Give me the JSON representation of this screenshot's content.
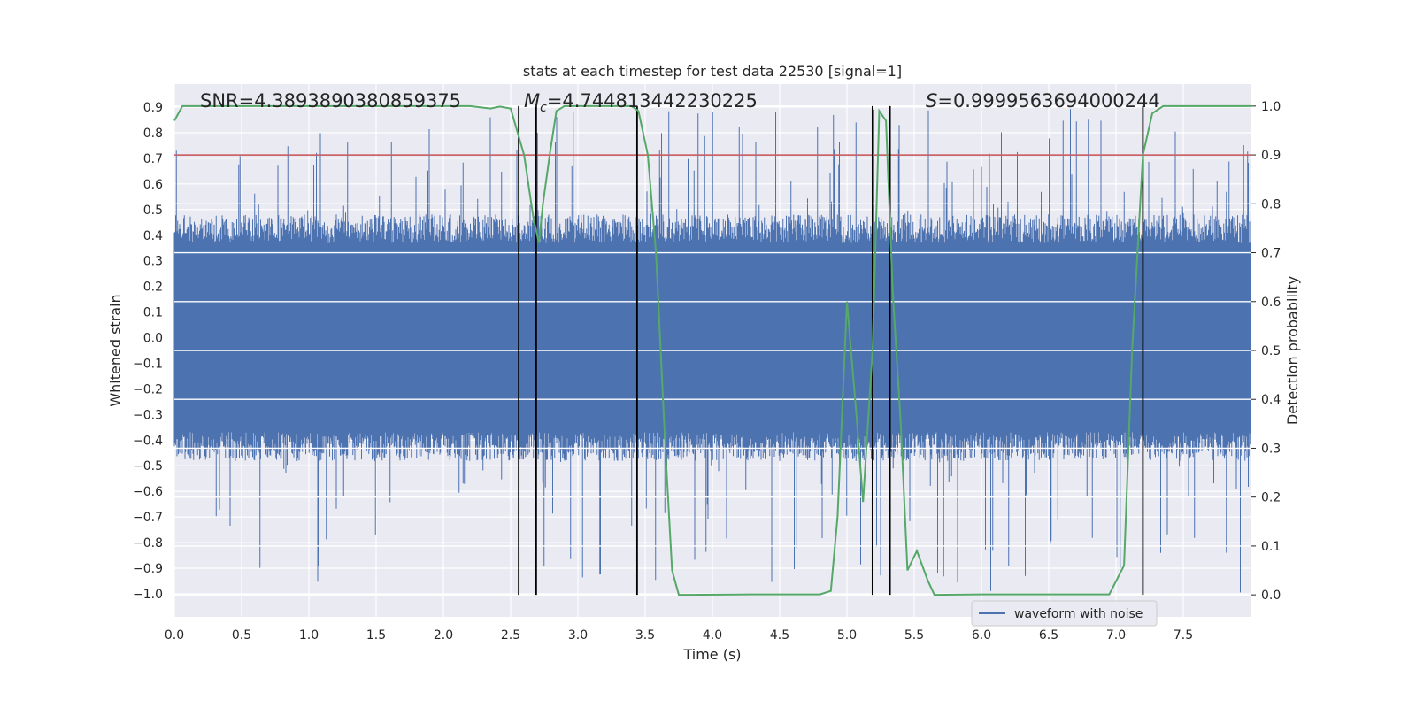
{
  "chart_data": {
    "type": "line",
    "title": "stats at each timestep for test data 22530 [signal=1]",
    "xlabel": "Time (s)",
    "ylabel": "Whitened strain",
    "y2label": "Detection probability",
    "xlim": [
      0.0,
      8.0
    ],
    "ylim": [
      -1.09,
      0.99
    ],
    "y2lim": [
      -0.045,
      1.045
    ],
    "xticks": [
      "0.0",
      "0.5",
      "1.0",
      "1.5",
      "2.0",
      "2.5",
      "3.0",
      "3.5",
      "4.0",
      "4.5",
      "5.0",
      "5.5",
      "6.0",
      "6.5",
      "7.0",
      "7.5"
    ],
    "xtick_values": [
      0.0,
      0.5,
      1.0,
      1.5,
      2.0,
      2.5,
      3.0,
      3.5,
      4.0,
      4.5,
      5.0,
      5.5,
      6.0,
      6.5,
      7.0,
      7.5
    ],
    "yticks": [
      "0.9",
      "0.8",
      "0.7",
      "0.6",
      "0.5",
      "0.4",
      "0.3",
      "0.2",
      "0.1",
      "0.0",
      "−0.1",
      "−0.2",
      "−0.3",
      "−0.4",
      "−0.5",
      "−0.6",
      "−0.7",
      "−0.8",
      "−0.9",
      "−1.0"
    ],
    "ytick_values": [
      0.9,
      0.8,
      0.7,
      0.6,
      0.5,
      0.4,
      0.3,
      0.2,
      0.1,
      0.0,
      -0.1,
      -0.2,
      -0.3,
      -0.4,
      -0.5,
      -0.6,
      -0.7,
      -0.8,
      -0.9,
      -1.0
    ],
    "y2ticks": [
      "1.0",
      "0.9",
      "0.8",
      "0.7",
      "0.6",
      "0.5",
      "0.4",
      "0.3",
      "0.2",
      "0.1",
      "0.0"
    ],
    "y2tick_values": [
      1.0,
      0.9,
      0.8,
      0.7,
      0.6,
      0.5,
      0.4,
      0.3,
      0.2,
      0.1,
      0.0
    ],
    "annotations": {
      "snr": "SNR=4.3893890380859375",
      "mc_sym": "M",
      "mc_sub": "c",
      "mc_val": "=4.744813442230225",
      "s_sym": "S",
      "s_val": "=0.9999563694000244"
    },
    "legend": {
      "label": "waveform with noise",
      "placement": "lower-right"
    },
    "threshold": {
      "axis": "y2",
      "value": 0.9,
      "color": "#c44e52"
    },
    "vlines": [
      2.56,
      2.69,
      3.44,
      5.19,
      5.32,
      7.2
    ],
    "waveform": {
      "name": "waveform with noise",
      "color": "#4c72b0",
      "typical_abs": 0.45,
      "max": 0.9,
      "min": -1.0
    },
    "probability": {
      "color": "#55a868",
      "points": [
        [
          0.0,
          0.97
        ],
        [
          0.06,
          1.0
        ],
        [
          2.2,
          1.0
        ],
        [
          2.35,
          0.995
        ],
        [
          2.42,
          0.999
        ],
        [
          2.5,
          0.995
        ],
        [
          2.6,
          0.9
        ],
        [
          2.67,
          0.77
        ],
        [
          2.71,
          0.72
        ],
        [
          2.74,
          0.8
        ],
        [
          2.79,
          0.9
        ],
        [
          2.84,
          0.99
        ],
        [
          2.9,
          1.0
        ],
        [
          3.4,
          1.0
        ],
        [
          3.45,
          0.99
        ],
        [
          3.52,
          0.9
        ],
        [
          3.58,
          0.7
        ],
        [
          3.65,
          0.3
        ],
        [
          3.7,
          0.05
        ],
        [
          3.75,
          0.0
        ],
        [
          3.82,
          0.0
        ],
        [
          4.3,
          0.001
        ],
        [
          4.8,
          0.001
        ],
        [
          4.88,
          0.008
        ],
        [
          4.93,
          0.16
        ],
        [
          5.0,
          0.6
        ],
        [
          5.07,
          0.37
        ],
        [
          5.12,
          0.19
        ],
        [
          5.19,
          0.5
        ],
        [
          5.24,
          0.99
        ],
        [
          5.29,
          0.97
        ],
        [
          5.34,
          0.62
        ],
        [
          5.4,
          0.35
        ],
        [
          5.45,
          0.05
        ],
        [
          5.52,
          0.09
        ],
        [
          5.6,
          0.03
        ],
        [
          5.65,
          0.0
        ],
        [
          6.0,
          0.001
        ],
        [
          6.5,
          0.001
        ],
        [
          6.95,
          0.001
        ],
        [
          7.06,
          0.06
        ],
        [
          7.12,
          0.5
        ],
        [
          7.2,
          0.9
        ],
        [
          7.27,
          0.985
        ],
        [
          7.35,
          1.0
        ],
        [
          8.0,
          1.0
        ]
      ]
    }
  }
}
